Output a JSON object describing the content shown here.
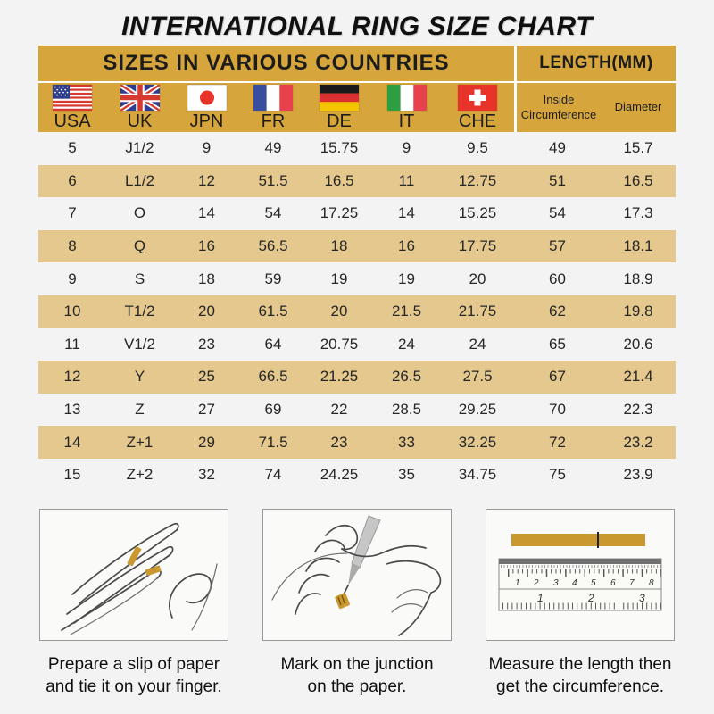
{
  "chart_data": {
    "type": "table",
    "title": "INTERNATIONAL RING SIZE CHART",
    "section_headers": {
      "left": "SIZES IN VARIOUS COUNTRIES",
      "right": "LENGTH(MM)"
    },
    "columns": [
      "USA",
      "UK",
      "JPN",
      "FR",
      "DE",
      "IT",
      "CHE",
      "Inside Circumference",
      "Diameter"
    ],
    "rows": [
      [
        "5",
        "J1/2",
        "9",
        "49",
        "15.75",
        "9",
        "9.5",
        "49",
        "15.7"
      ],
      [
        "6",
        "L1/2",
        "12",
        "51.5",
        "16.5",
        "11",
        "12.75",
        "51",
        "16.5"
      ],
      [
        "7",
        "O",
        "14",
        "54",
        "17.25",
        "14",
        "15.25",
        "54",
        "17.3"
      ],
      [
        "8",
        "Q",
        "16",
        "56.5",
        "18",
        "16",
        "17.75",
        "57",
        "18.1"
      ],
      [
        "9",
        "S",
        "18",
        "59",
        "19",
        "19",
        "20",
        "60",
        "18.9"
      ],
      [
        "10",
        "T1/2",
        "20",
        "61.5",
        "20",
        "21.5",
        "21.75",
        "62",
        "19.8"
      ],
      [
        "11",
        "V1/2",
        "23",
        "64",
        "20.75",
        "24",
        "24",
        "65",
        "20.6"
      ],
      [
        "12",
        "Y",
        "25",
        "66.5",
        "21.25",
        "26.5",
        "27.5",
        "67",
        "21.4"
      ],
      [
        "13",
        "Z",
        "27",
        "69",
        "22",
        "28.5",
        "29.25",
        "70",
        "22.3"
      ],
      [
        "14",
        "Z+1",
        "29",
        "71.5",
        "23",
        "33",
        "32.25",
        "72",
        "23.2"
      ],
      [
        "15",
        "Z+2",
        "32",
        "74",
        "24.25",
        "35",
        "34.75",
        "75",
        "23.9"
      ]
    ]
  },
  "flags": [
    {
      "country": "USA",
      "icon": "usa-flag-icon"
    },
    {
      "country": "UK",
      "icon": "uk-flag-icon"
    },
    {
      "country": "JPN",
      "icon": "japan-flag-icon"
    },
    {
      "country": "FR",
      "icon": "france-flag-icon"
    },
    {
      "country": "DE",
      "icon": "germany-flag-icon"
    },
    {
      "country": "IT",
      "icon": "italy-flag-icon"
    },
    {
      "country": "CHE",
      "icon": "switzerland-flag-icon"
    }
  ],
  "instructions": [
    {
      "line1": "Prepare a slip of paper",
      "line2": "and tie it on your finger.",
      "illustration": "hand-with-paper-slip-illustration"
    },
    {
      "line1": "Mark on the junction",
      "line2": "on the paper.",
      "illustration": "pen-marking-finger-illustration"
    },
    {
      "line1": "Measure the length then",
      "line2": "get the circumference.",
      "illustration": "ruler-measurement-illustration"
    }
  ],
  "colors": {
    "page_bg": "#F3F3F3",
    "header_gold": "#D6A63C",
    "row_tan": "#E5C88D",
    "title_text": "#101010",
    "paper_gold": "#C9992F"
  }
}
